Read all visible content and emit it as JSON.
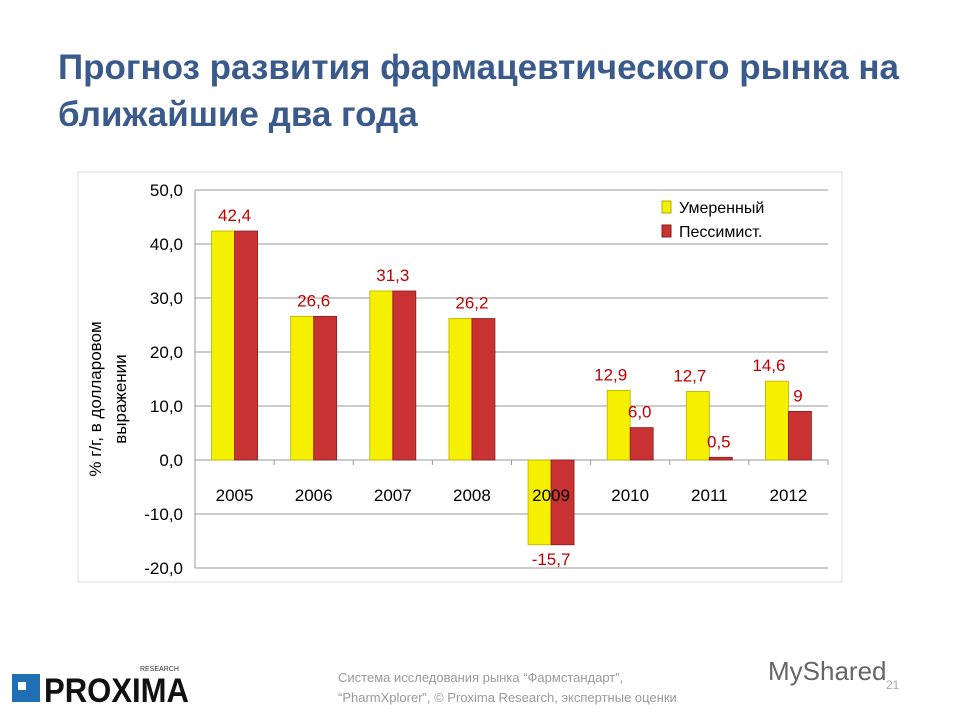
{
  "title": "Прогноз развития фармацевтического рынка на ближайшие два года",
  "chart_data": {
    "type": "bar",
    "categories": [
      "2005",
      "2006",
      "2007",
      "2008",
      "2009",
      "2010",
      "2011",
      "2012"
    ],
    "series": [
      {
        "name": "Умеренный",
        "color": "#f5f000",
        "values": [
          42.4,
          26.6,
          31.3,
          26.2,
          -15.7,
          12.9,
          12.7,
          14.6
        ]
      },
      {
        "name": "Пессимист.",
        "color": "#c83232",
        "values": [
          42.4,
          26.6,
          31.3,
          26.2,
          -15.7,
          6.0,
          0.5,
          9
        ]
      }
    ],
    "data_labels": [
      {
        "category": "2005",
        "series": "both",
        "text": "42,4"
      },
      {
        "category": "2006",
        "series": "both",
        "text": "26,6"
      },
      {
        "category": "2007",
        "series": "both",
        "text": "31,3"
      },
      {
        "category": "2008",
        "series": "both",
        "text": "26,2"
      },
      {
        "category": "2009",
        "series": "both",
        "text": "-15,7"
      },
      {
        "category": "2010",
        "series": 0,
        "text": "12,9"
      },
      {
        "category": "2010",
        "series": 1,
        "text": "6,0"
      },
      {
        "category": "2011",
        "series": 0,
        "text": "12,7"
      },
      {
        "category": "2011",
        "series": 1,
        "text": "0,5"
      },
      {
        "category": "2012",
        "series": 0,
        "text": "14,6"
      },
      {
        "category": "2012",
        "series": 1,
        "text": "9"
      }
    ],
    "label_color": "#c00000",
    "ylabel_lines": [
      "% г/г,  в долларовом",
      "выражении"
    ],
    "ylim": [
      -20,
      50
    ],
    "yticks": [
      "-20,0",
      "-10,0",
      "0,0",
      "10,0",
      "20,0",
      "30,0",
      "40,0",
      "50,0"
    ],
    "ytick_values": [
      -20,
      -10,
      0,
      10,
      20,
      30,
      40,
      50
    ],
    "grid": true,
    "legend_position": "top-right"
  },
  "footer": {
    "source_line1": "Система исследования рынка “Фармстандарт”,",
    "source_line2": "“PharmXplorer”, © Proxima Research, экспертные оценки",
    "page_number": "21",
    "logo_text": "PROXIMA",
    "logo_sub": "RESEARCH",
    "watermark": "MyShared"
  }
}
